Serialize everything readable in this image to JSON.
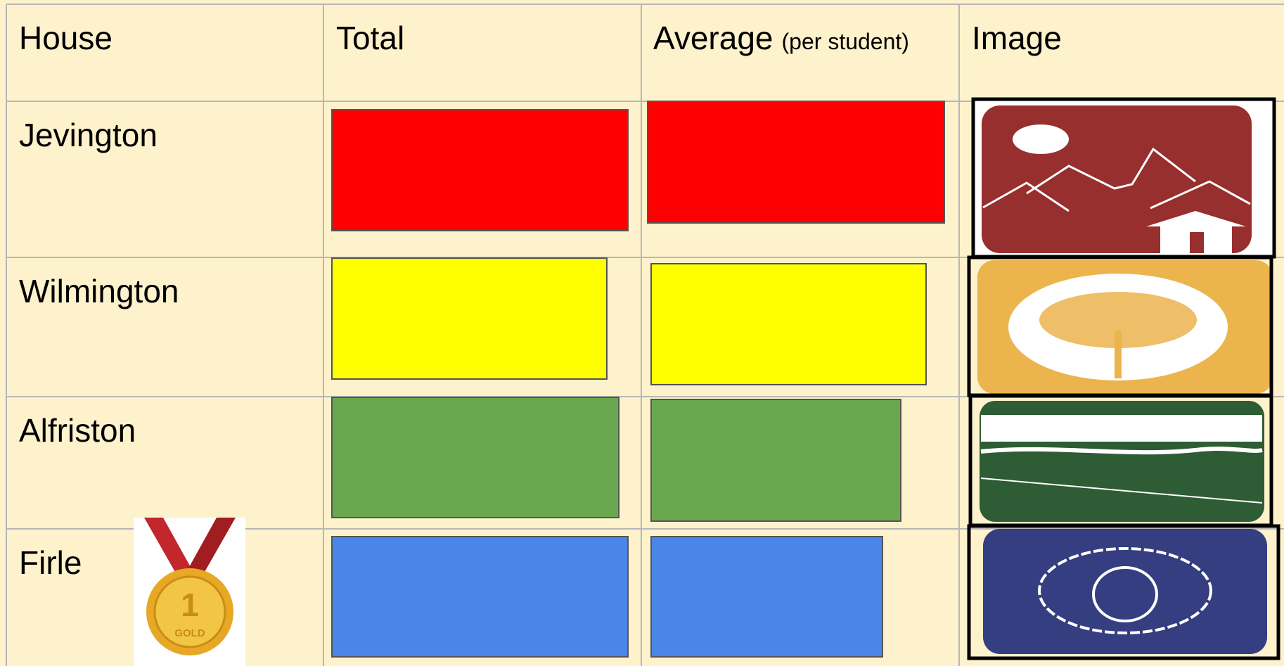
{
  "table": {
    "headers": [
      "House",
      "Total",
      "Average",
      "(per student)",
      "Image"
    ],
    "houses": [
      "Jevington",
      "Wilmington",
      "Alfriston",
      "Firle"
    ]
  },
  "medal": {
    "number": "1",
    "label": "GOLD"
  }
}
